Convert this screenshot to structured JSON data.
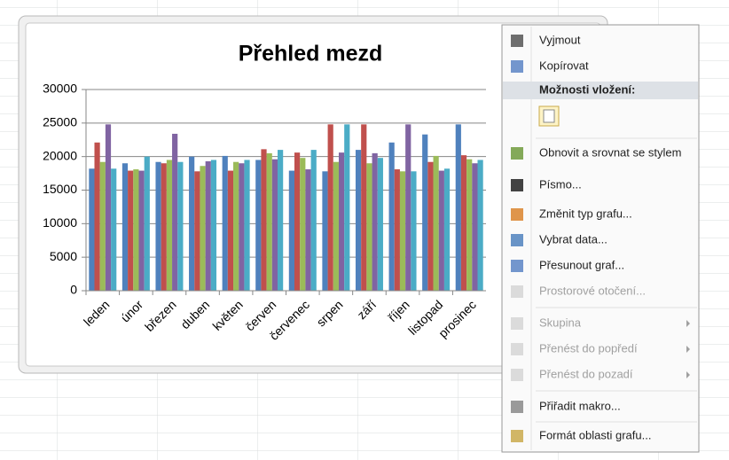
{
  "chart_data": {
    "type": "bar",
    "title": "Přehled mezd",
    "categories": [
      "leden",
      "únor",
      "březen",
      "duben",
      "květen",
      "červen",
      "červenec",
      "srpen",
      "září",
      "říjen",
      "listopad",
      "prosinec"
    ],
    "series": [
      {
        "color": "#4f81bd",
        "values": [
          18200,
          19000,
          19200,
          20000,
          20100,
          19500,
          17900,
          17800,
          21000,
          22100,
          23300,
          24800
        ]
      },
      {
        "color": "#c0504d",
        "values": [
          22100,
          17900,
          19000,
          17800,
          17900,
          21100,
          20600,
          24800,
          24800,
          18100,
          19200,
          20200
        ]
      },
      {
        "color": "#9bbb59",
        "values": [
          19200,
          18100,
          19500,
          18600,
          19200,
          20500,
          19800,
          19200,
          19000,
          17800,
          20100,
          19600
        ]
      },
      {
        "color": "#8064a2",
        "values": [
          24800,
          17900,
          23400,
          19300,
          19000,
          19600,
          18100,
          20600,
          20500,
          24800,
          17900,
          19000
        ]
      },
      {
        "color": "#4bacc6",
        "values": [
          18200,
          20000,
          19200,
          19500,
          19500,
          21000,
          21000,
          24800,
          19800,
          17800,
          18200,
          19500
        ]
      }
    ],
    "ylim": [
      0,
      30000
    ],
    "yticks": [
      0,
      5000,
      10000,
      15000,
      20000,
      25000,
      30000
    ],
    "grid": true
  },
  "context_menu": {
    "paste_options_header": "Možnosti vložení:",
    "items": [
      {
        "label": "Vyjmout",
        "disabled": false,
        "submenu": false
      },
      {
        "label": "Kopírovat",
        "disabled": false,
        "submenu": false
      },
      {
        "label": "Obnovit a srovnat se stylem",
        "disabled": false,
        "submenu": false
      },
      {
        "label": "Písmo...",
        "disabled": false,
        "submenu": false
      },
      {
        "label": "Změnit typ grafu...",
        "disabled": false,
        "submenu": false
      },
      {
        "label": "Vybrat data...",
        "disabled": false,
        "submenu": false
      },
      {
        "label": "Přesunout graf...",
        "disabled": false,
        "submenu": false
      },
      {
        "label": "Prostorové otočení...",
        "disabled": true,
        "submenu": false
      },
      {
        "label": "Skupina",
        "disabled": true,
        "submenu": true
      },
      {
        "label": "Přenést do popředí",
        "disabled": true,
        "submenu": true
      },
      {
        "label": "Přenést do pozadí",
        "disabled": true,
        "submenu": true
      },
      {
        "label": "Přiřadit makro...",
        "disabled": false,
        "submenu": false
      },
      {
        "label": "Formát oblasti grafu...",
        "disabled": false,
        "submenu": false
      }
    ]
  }
}
